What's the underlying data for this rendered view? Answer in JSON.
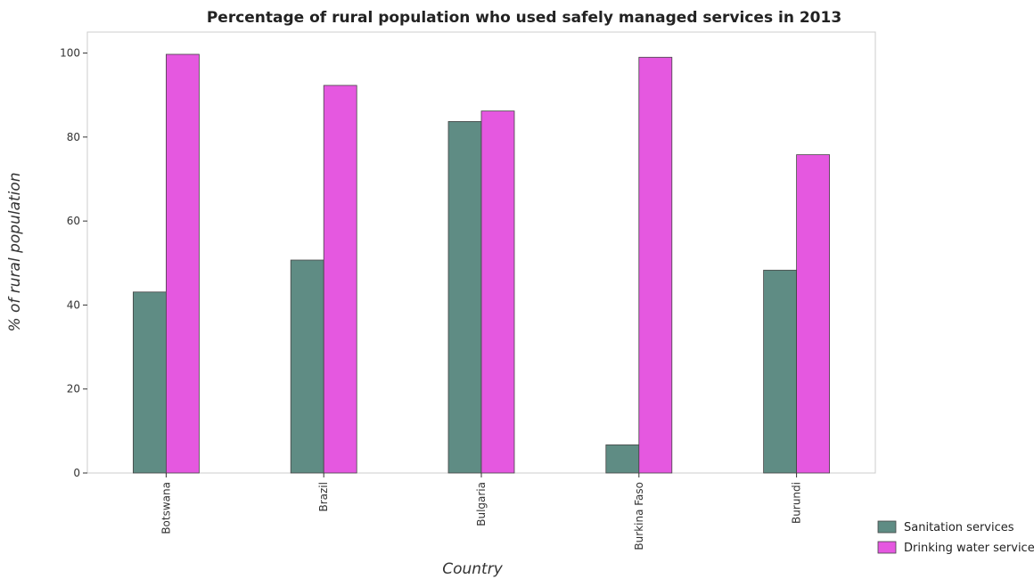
{
  "chart_data": {
    "type": "bar",
    "title": "Percentage of rural population who used safely managed services in 2013",
    "xlabel": "Country",
    "ylabel": "% of rural population",
    "categories": [
      "Botswana",
      "Brazil",
      "Bulgaria",
      "Burkina Faso",
      "Burundi"
    ],
    "series": [
      {
        "name": "Sanitation services",
        "color": "#5f8c84",
        "values": [
          43.1,
          50.7,
          83.7,
          6.7,
          48.3
        ]
      },
      {
        "name": "Drinking water services",
        "color": "#e558e0",
        "values": [
          99.7,
          92.3,
          86.2,
          99.0,
          75.8
        ]
      }
    ],
    "ylim": [
      0,
      105
    ],
    "yticks": [
      0,
      20,
      40,
      60,
      80,
      100
    ],
    "grid": false,
    "legend_position": "bottom-right"
  }
}
